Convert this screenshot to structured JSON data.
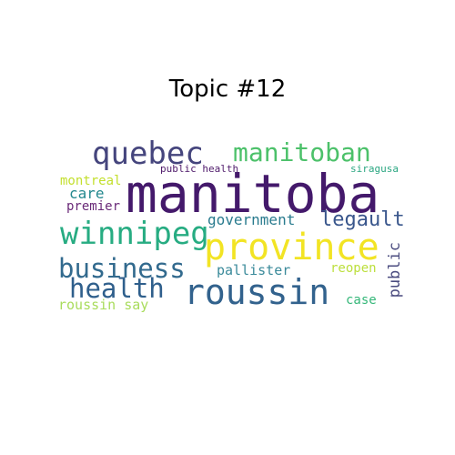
{
  "title": "Topic #12",
  "words": {
    "manitoba": {
      "text": "manitoba",
      "color": "#44196b"
    },
    "province": {
      "text": "province",
      "color": "#f2e424"
    },
    "roussin": {
      "text": "roussin",
      "color": "#32628d"
    },
    "quebec": {
      "text": "quebec",
      "color": "#45457d"
    },
    "manitoban": {
      "text": "manitoban",
      "color": "#4cc16a"
    },
    "winnipeg": {
      "text": "winnipeg",
      "color": "#27ac82"
    },
    "business": {
      "text": "business",
      "color": "#326a8e"
    },
    "health": {
      "text": "health",
      "color": "#2f5f8c"
    },
    "legault": {
      "text": "legault",
      "color": "#39568c"
    },
    "government": {
      "text": "government",
      "color": "#297b8e"
    },
    "care": {
      "text": "care",
      "color": "#23888e"
    },
    "montreal": {
      "text": "montreal",
      "color": "#c3df2d"
    },
    "premier": {
      "text": "premier",
      "color": "#6a2a78"
    },
    "public_health": {
      "text": "public health",
      "color": "#4f1a6b"
    },
    "siragusa": {
      "text": "siragusa",
      "color": "#2aa681"
    },
    "pallister": {
      "text": "pallister",
      "color": "#3a8a9a"
    },
    "reopen": {
      "text": "reopen",
      "color": "#bcdf3c"
    },
    "public": {
      "text": "public",
      "color": "#4a4b7f"
    },
    "roussin_say": {
      "text": "roussin say",
      "color": "#a9dc5c"
    },
    "case": {
      "text": "case",
      "color": "#35b779"
    }
  }
}
